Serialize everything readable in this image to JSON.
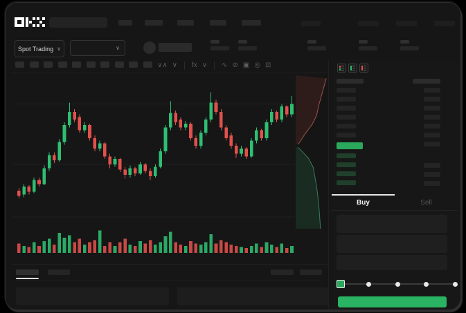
{
  "brand": {
    "name": "OKX"
  },
  "header": {
    "search": {
      "placeholder": ""
    },
    "nav_item_count": 5,
    "nav_right_count": 4
  },
  "market_bar": {
    "mode_selector": {
      "label": "Spot Trading",
      "chevron": "∨"
    },
    "pair_selector": {
      "chevron": "∨"
    },
    "stat_count": 5
  },
  "chart_toolbar": {
    "preset_count": 10,
    "icons": [
      {
        "name": "candle-style-icon",
        "glyph": "∨∧"
      },
      {
        "name": "line-style-icon",
        "glyph": "∨"
      },
      {
        "name": "indicators-icon",
        "glyph": "fx"
      },
      {
        "name": "chevron-down-icon",
        "glyph": "∨"
      },
      {
        "name": "wave-tool-icon",
        "glyph": "∿"
      },
      {
        "name": "draw-tool-icon",
        "glyph": "⊘"
      },
      {
        "name": "camera-icon",
        "glyph": "▣"
      },
      {
        "name": "settings-icon",
        "glyph": "◎"
      },
      {
        "name": "fullscreen-icon",
        "glyph": "⊡"
      }
    ]
  },
  "orderbook": {
    "view_icons": [
      "orderbook-both-icon",
      "orderbook-bids-icon",
      "orderbook-asks-icon"
    ],
    "ask_row_count": 6,
    "right_row_count": 7,
    "bid_row_count": 4,
    "bid_right_row_count": 3,
    "last_price_color": "#2aa85c"
  },
  "trade_panel": {
    "tabs": [
      {
        "label": "Buy",
        "active": true
      },
      {
        "label": "Sell",
        "active": false
      }
    ],
    "field_count": 3,
    "slider": {
      "stops": 5,
      "active_stop": 0
    },
    "submit": {
      "color": "#2ab362"
    }
  },
  "bottom_bar": {
    "tab_count": 2,
    "right_item_count": 2,
    "table_count": 2
  },
  "colors": {
    "up": "#2fbe72",
    "down": "#e1514c",
    "accent": "#2ab362",
    "bg": "#161616",
    "grid": "#202020",
    "ask_line": "#9a524c",
    "bid_line": "#37805c",
    "ask_fill": "rgba(110,48,42,0.28)",
    "bid_fill": "rgba(38,100,64,0.28)"
  },
  "chart_data": {
    "type": "candlestick",
    "title": "",
    "xlabel": "",
    "ylabel": "",
    "value_scale": [
      0,
      100
    ],
    "gridlines_y_pct": [
      15.5,
      49,
      78.5
    ],
    "candles_ochl": [
      [
        18,
        14,
        20,
        12
      ],
      [
        15,
        21,
        23,
        13
      ],
      [
        21,
        17,
        22,
        15
      ],
      [
        17,
        26,
        28,
        16
      ],
      [
        26,
        23,
        28,
        21
      ],
      [
        23,
        35,
        37,
        22
      ],
      [
        35,
        45,
        47,
        33
      ],
      [
        45,
        41,
        47,
        39
      ],
      [
        41,
        55,
        57,
        40
      ],
      [
        55,
        68,
        70,
        53
      ],
      [
        68,
        78,
        85,
        66
      ],
      [
        78,
        72,
        80,
        70
      ],
      [
        74,
        64,
        76,
        62
      ],
      [
        64,
        68,
        70,
        62
      ],
      [
        68,
        58,
        69,
        56
      ],
      [
        58,
        50,
        60,
        48
      ],
      [
        50,
        54,
        56,
        48
      ],
      [
        54,
        44,
        55,
        42
      ],
      [
        44,
        38,
        46,
        35
      ],
      [
        38,
        42,
        44,
        36
      ],
      [
        42,
        34,
        43,
        32
      ],
      [
        34,
        30,
        36,
        27
      ],
      [
        30,
        35,
        37,
        28
      ],
      [
        35,
        31,
        36,
        29
      ],
      [
        31,
        38,
        40,
        30
      ],
      [
        38,
        33,
        39,
        31
      ],
      [
        33,
        29,
        35,
        26
      ],
      [
        29,
        36,
        38,
        28
      ],
      [
        36,
        48,
        50,
        35
      ],
      [
        48,
        66,
        68,
        46
      ],
      [
        66,
        77,
        86,
        64
      ],
      [
        77,
        70,
        79,
        68
      ],
      [
        72,
        66,
        74,
        64
      ],
      [
        66,
        69,
        71,
        64
      ],
      [
        69,
        58,
        70,
        56
      ],
      [
        58,
        52,
        60,
        50
      ],
      [
        52,
        62,
        64,
        50
      ],
      [
        62,
        72,
        74,
        60
      ],
      [
        72,
        85,
        93,
        70
      ],
      [
        85,
        78,
        87,
        76
      ],
      [
        78,
        66,
        80,
        64
      ],
      [
        66,
        58,
        68,
        56
      ],
      [
        60,
        52,
        62,
        50
      ],
      [
        52,
        46,
        54,
        43
      ],
      [
        46,
        50,
        52,
        44
      ],
      [
        50,
        44,
        51,
        42
      ],
      [
        44,
        56,
        58,
        43
      ],
      [
        56,
        64,
        66,
        54
      ],
      [
        64,
        58,
        65,
        56
      ],
      [
        58,
        70,
        72,
        56
      ],
      [
        70,
        78,
        80,
        68
      ],
      [
        78,
        72,
        79,
        70
      ],
      [
        72,
        82,
        84,
        70
      ],
      [
        82,
        76,
        83,
        74
      ],
      [
        76,
        84,
        90,
        74
      ]
    ],
    "volume": [
      8,
      6,
      5,
      9,
      6,
      10,
      12,
      7,
      17,
      13,
      15,
      9,
      12,
      7,
      9,
      11,
      19,
      6,
      9,
      6,
      9,
      12,
      7,
      6,
      10,
      8,
      11,
      7,
      9,
      14,
      18,
      9,
      7,
      6,
      10,
      8,
      7,
      9,
      16,
      8,
      11,
      9,
      7,
      6,
      5,
      4,
      6,
      8,
      5,
      9,
      7,
      5,
      8,
      4,
      6
    ],
    "depth": {
      "asks": [
        [
          96,
          2
        ],
        [
          80,
          14
        ],
        [
          72,
          20
        ],
        [
          66,
          26
        ],
        [
          52,
          32
        ],
        [
          30,
          38
        ],
        [
          8,
          45
        ]
      ],
      "bids": [
        [
          8,
          47
        ],
        [
          40,
          54
        ],
        [
          55,
          60
        ],
        [
          62,
          68
        ],
        [
          68,
          76
        ],
        [
          73,
          86
        ],
        [
          78,
          100
        ]
      ]
    }
  }
}
